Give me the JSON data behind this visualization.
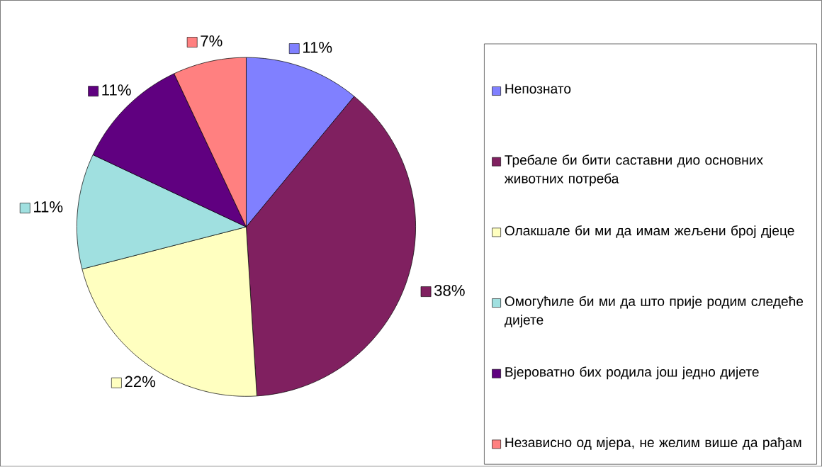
{
  "chart_data": {
    "type": "pie",
    "categories": [
      "Непознато",
      "Требале би бити саставни дио основних животних потреба",
      "Олакшале би ми да имам жељени број дјеце",
      "Омогућиле би ми да што прије родим следеће дијете",
      "Вјероватно бих родила још једно дијете",
      "Независно од мјера, не желим више да рађам"
    ],
    "values": [
      11,
      38,
      22,
      11,
      11,
      7
    ],
    "colors": [
      "#8080ff",
      "#802060",
      "#ffffc0",
      "#a0e0e0",
      "#600080",
      "#ff8080"
    ],
    "value_labels": [
      "11%",
      "38%",
      "22%",
      "11%",
      "11%",
      "7%"
    ],
    "legend": "right"
  }
}
